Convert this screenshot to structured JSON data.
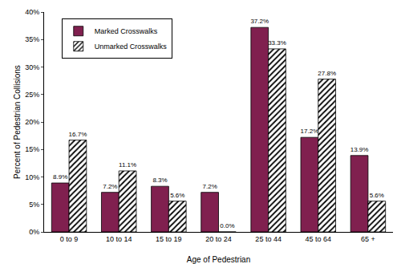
{
  "chart_data": {
    "type": "bar",
    "x_label": "Age of Pedestrian",
    "y_label": "Percent of Pedestrian Collisions",
    "categories": [
      "0 to 9",
      "10 to 14",
      "15 to 19",
      "20 to 24",
      "25 to 44",
      "45 to 64",
      "65 +"
    ],
    "series": [
      {
        "name": "Marked Crosswalks",
        "color": "#80204f",
        "marker": "solid",
        "values": [
          8.9,
          7.2,
          8.3,
          7.2,
          37.2,
          17.2,
          13.9
        ],
        "value_labels": [
          "8.9%",
          "7.2%",
          "8.3%",
          "7.2%",
          "37.2%",
          "17.2%",
          "13.9%"
        ]
      },
      {
        "name": "Unmarked Crosswalks",
        "color": "#000000",
        "marker": "hatched",
        "values": [
          16.7,
          11.1,
          5.6,
          0.0,
          33.3,
          27.8,
          5.6
        ],
        "value_labels": [
          "16.7%",
          "11.1%",
          "5.6%",
          "0.0%",
          "33.3%",
          "27.8%",
          "5.6%"
        ]
      }
    ],
    "ylim": [
      0,
      40
    ],
    "yticks": [
      {
        "value": 0,
        "label": "0%"
      },
      {
        "value": 5,
        "label": "5%"
      },
      {
        "value": 10,
        "label": "10%"
      },
      {
        "value": 15,
        "label": "15%"
      },
      {
        "value": 20,
        "label": "20%"
      },
      {
        "value": 25,
        "label": "25%"
      },
      {
        "value": 30,
        "label": "30%"
      },
      {
        "value": 35,
        "label": "35%"
      },
      {
        "value": 40,
        "label": "40%"
      }
    ],
    "grid": false,
    "legend": "top left",
    "data_labels": true
  }
}
